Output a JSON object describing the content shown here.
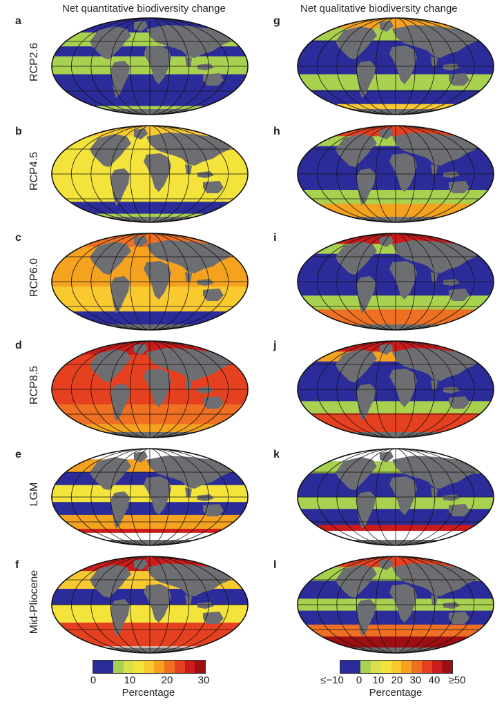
{
  "titles": {
    "left": "Net quantitative biodiversity change",
    "right": "Net qualitative biodiversity change"
  },
  "rows": [
    {
      "label": "RCP2.6",
      "left_letter": "a",
      "right_letter": "g"
    },
    {
      "label": "RCP4.5",
      "left_letter": "b",
      "right_letter": "h"
    },
    {
      "label": "RCP6.0",
      "left_letter": "c",
      "right_letter": "i"
    },
    {
      "label": "RCP8.5",
      "left_letter": "d",
      "right_letter": "j"
    },
    {
      "label": "LGM",
      "left_letter": "e",
      "right_letter": "k"
    },
    {
      "label": "Mid-Pliocene",
      "left_letter": "f",
      "right_letter": "l"
    }
  ],
  "colorbars": {
    "left": {
      "ticks": [
        "0",
        "10",
        "20",
        "30"
      ],
      "label": "Percentage",
      "colors": [
        "#2b2c9a",
        "#2b2c9a",
        "#a8d14f",
        "#d9e04a",
        "#f3e33a",
        "#f9c930",
        "#f5a21f",
        "#ef7022",
        "#e5401f",
        "#cc1b1b",
        "#9e0f14"
      ]
    },
    "right": {
      "ticks": [
        "≤−10",
        "0",
        "10",
        "20",
        "30",
        "40",
        "≥50"
      ],
      "label": "Percentage",
      "colors": [
        "#2b2c9a",
        "#2b2c9a",
        "#a8d14f",
        "#d9e04a",
        "#f3e33a",
        "#f9c930",
        "#f5a21f",
        "#ef7022",
        "#e5401f",
        "#cc1b1b",
        "#9e0f14"
      ]
    }
  },
  "maps": {
    "a": [
      {
        "y0": 0.0,
        "y1": 0.16,
        "c": "#2b2c9a"
      },
      {
        "y0": 0.16,
        "y1": 0.3,
        "c": "#a8d14f"
      },
      {
        "y0": 0.3,
        "y1": 0.4,
        "c": "#2b2c9a"
      },
      {
        "y0": 0.4,
        "y1": 0.58,
        "c": "#a8d14f"
      },
      {
        "y0": 0.58,
        "y1": 0.9,
        "c": "#2b2c9a"
      },
      {
        "y0": 0.9,
        "y1": 1.0,
        "c": "#a8d14f"
      }
    ],
    "b": [
      {
        "y0": 0.0,
        "y1": 0.12,
        "c": "#f9c930"
      },
      {
        "y0": 0.12,
        "y1": 0.78,
        "c": "#f3e33a"
      },
      {
        "y0": 0.78,
        "y1": 0.9,
        "c": "#2b2c9a"
      },
      {
        "y0": 0.9,
        "y1": 1.0,
        "c": "#a8d14f"
      }
    ],
    "c": [
      {
        "y0": 0.0,
        "y1": 0.15,
        "c": "#ef7022"
      },
      {
        "y0": 0.15,
        "y1": 0.55,
        "c": "#f5a21f"
      },
      {
        "y0": 0.55,
        "y1": 0.8,
        "c": "#f9c930"
      },
      {
        "y0": 0.8,
        "y1": 1.0,
        "c": "#2b2c9a"
      }
    ],
    "d": [
      {
        "y0": 0.0,
        "y1": 0.15,
        "c": "#cc1b1b"
      },
      {
        "y0": 0.15,
        "y1": 0.65,
        "c": "#e5401f"
      },
      {
        "y0": 0.65,
        "y1": 0.85,
        "c": "#ef7022"
      },
      {
        "y0": 0.85,
        "y1": 1.0,
        "c": "#f5a21f"
      }
    ],
    "e": [
      {
        "y0": 0.0,
        "y1": 0.12,
        "c": "#ffffff"
      },
      {
        "y0": 0.12,
        "y1": 0.25,
        "c": "#f5a21f"
      },
      {
        "y0": 0.25,
        "y1": 0.38,
        "c": "#2b2c9a"
      },
      {
        "y0": 0.38,
        "y1": 0.55,
        "c": "#f3e33a"
      },
      {
        "y0": 0.55,
        "y1": 0.68,
        "c": "#2b2c9a"
      },
      {
        "y0": 0.68,
        "y1": 0.82,
        "c": "#f5a21f"
      },
      {
        "y0": 0.82,
        "y1": 0.86,
        "c": "#cc1b1b"
      },
      {
        "y0": 0.86,
        "y1": 1.0,
        "c": "#ffffff"
      }
    ],
    "f": [
      {
        "y0": 0.0,
        "y1": 0.16,
        "c": "#cc1b1b"
      },
      {
        "y0": 0.16,
        "y1": 0.34,
        "c": "#f9c930"
      },
      {
        "y0": 0.34,
        "y1": 0.5,
        "c": "#2b2c9a"
      },
      {
        "y0": 0.5,
        "y1": 0.68,
        "c": "#f3e33a"
      },
      {
        "y0": 0.68,
        "y1": 0.92,
        "c": "#e5401f"
      },
      {
        "y0": 0.92,
        "y1": 1.0,
        "c": "#ffffff"
      }
    ],
    "g": [
      {
        "y0": 0.0,
        "y1": 0.12,
        "c": "#f5a21f"
      },
      {
        "y0": 0.12,
        "y1": 0.24,
        "c": "#a8d14f"
      },
      {
        "y0": 0.24,
        "y1": 0.58,
        "c": "#2b2c9a"
      },
      {
        "y0": 0.58,
        "y1": 0.74,
        "c": "#a8d14f"
      },
      {
        "y0": 0.74,
        "y1": 0.88,
        "c": "#2b2c9a"
      },
      {
        "y0": 0.88,
        "y1": 1.0,
        "c": "#f9c930"
      }
    ],
    "h": [
      {
        "y0": 0.0,
        "y1": 0.12,
        "c": "#e5401f"
      },
      {
        "y0": 0.12,
        "y1": 0.22,
        "c": "#a8d14f"
      },
      {
        "y0": 0.22,
        "y1": 0.66,
        "c": "#2b2c9a"
      },
      {
        "y0": 0.66,
        "y1": 0.8,
        "c": "#a8d14f"
      },
      {
        "y0": 0.8,
        "y1": 1.0,
        "c": "#f5a21f"
      }
    ],
    "i": [
      {
        "y0": 0.0,
        "y1": 0.12,
        "c": "#cc1b1b"
      },
      {
        "y0": 0.12,
        "y1": 0.22,
        "c": "#a8d14f"
      },
      {
        "y0": 0.22,
        "y1": 0.64,
        "c": "#2b2c9a"
      },
      {
        "y0": 0.64,
        "y1": 0.78,
        "c": "#a8d14f"
      },
      {
        "y0": 0.78,
        "y1": 1.0,
        "c": "#ef7022"
      }
    ],
    "j": [
      {
        "y0": 0.0,
        "y1": 0.12,
        "c": "#cc1b1b"
      },
      {
        "y0": 0.12,
        "y1": 0.22,
        "c": "#f5a21f"
      },
      {
        "y0": 0.22,
        "y1": 0.62,
        "c": "#2b2c9a"
      },
      {
        "y0": 0.62,
        "y1": 0.74,
        "c": "#a8d14f"
      },
      {
        "y0": 0.74,
        "y1": 1.0,
        "c": "#e5401f"
      }
    ],
    "k": [
      {
        "y0": 0.0,
        "y1": 0.14,
        "c": "#ffffff"
      },
      {
        "y0": 0.14,
        "y1": 0.26,
        "c": "#a8d14f"
      },
      {
        "y0": 0.26,
        "y1": 0.5,
        "c": "#2b2c9a"
      },
      {
        "y0": 0.5,
        "y1": 0.62,
        "c": "#a8d14f"
      },
      {
        "y0": 0.62,
        "y1": 0.78,
        "c": "#2b2c9a"
      },
      {
        "y0": 0.78,
        "y1": 0.84,
        "c": "#cc1b1b"
      },
      {
        "y0": 0.84,
        "y1": 1.0,
        "c": "#ffffff"
      }
    ],
    "l": [
      {
        "y0": 0.0,
        "y1": 0.12,
        "c": "#e5401f"
      },
      {
        "y0": 0.12,
        "y1": 0.26,
        "c": "#a8d14f"
      },
      {
        "y0": 0.26,
        "y1": 0.44,
        "c": "#2b2c9a"
      },
      {
        "y0": 0.44,
        "y1": 0.56,
        "c": "#a8d14f"
      },
      {
        "y0": 0.56,
        "y1": 0.7,
        "c": "#2b2c9a"
      },
      {
        "y0": 0.7,
        "y1": 0.82,
        "c": "#ef7022"
      },
      {
        "y0": 0.82,
        "y1": 1.0,
        "c": "#9e0f14"
      }
    ]
  },
  "land_color": "#6d6e71"
}
